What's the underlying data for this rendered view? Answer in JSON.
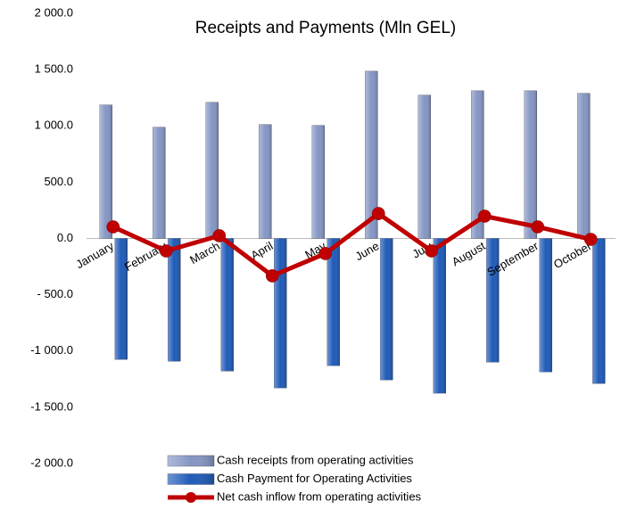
{
  "chart_data": {
    "type": "bar",
    "title": "Receipts and Payments (Mln GEL)",
    "categories": [
      "January",
      "February",
      "March",
      "April",
      "May",
      "June",
      "July",
      "August",
      "September",
      "October"
    ],
    "series": [
      {
        "name": "Cash receipts from operating activities",
        "type": "bar",
        "color": "#8596c4",
        "values": [
          1186,
          988,
          1209,
          1012,
          1004,
          1486,
          1273,
          1312,
          1312,
          1289
        ]
      },
      {
        "name": "Cash Payment for Operating Activities",
        "type": "bar",
        "color": "#1f5bb8",
        "values": [
          -1075,
          -1091,
          -1178,
          -1328,
          -1130,
          -1257,
          -1375,
          -1099,
          -1186,
          -1289
        ]
      },
      {
        "name": "Net cash inflow from operating activities",
        "type": "line",
        "color": "#c00000",
        "values": [
          103,
          -111,
          24,
          -332,
          -134,
          221,
          -111,
          198,
          103,
          -8
        ]
      }
    ],
    "ylim": [
      -2000,
      2000
    ],
    "yticks": [
      {
        "value": -2000,
        "label": "-2 000.0"
      },
      {
        "value": -1500,
        "label": "-1 500.0"
      },
      {
        "value": -1000,
        "label": "-1 000.0"
      },
      {
        "value": -500,
        "label": "- 500.0"
      },
      {
        "value": 0,
        "label": "0.0"
      },
      {
        "value": 500,
        "label": "500.0"
      },
      {
        "value": 1000,
        "label": "1 000.0"
      },
      {
        "value": 1500,
        "label": "1 500.0"
      },
      {
        "value": 2000,
        "label": "2 000.0"
      }
    ],
    "grid": false
  }
}
